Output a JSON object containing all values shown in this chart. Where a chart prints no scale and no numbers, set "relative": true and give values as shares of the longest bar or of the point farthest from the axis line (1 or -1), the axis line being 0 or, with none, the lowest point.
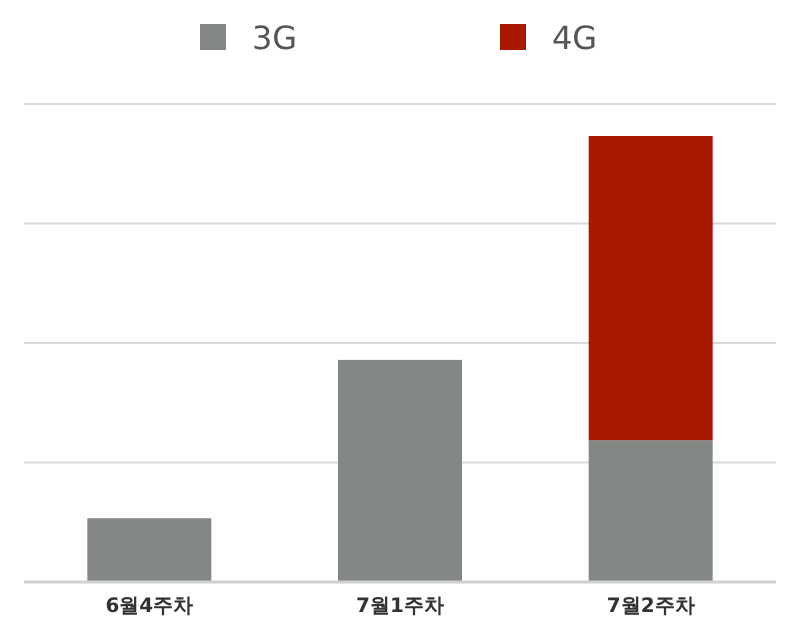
{
  "chart_data": {
    "type": "bar",
    "stacked": true,
    "relative": true,
    "grid": "y",
    "legend": "top",
    "categories": [
      "6월4주차",
      "7월1주차",
      "7월2주차"
    ],
    "series": [
      {
        "name": "3G",
        "color": "#838885",
        "values": [
          0.143,
          0.498,
          0.318
        ]
      },
      {
        "name": "4G",
        "color": "#ab1800",
        "values": [
          0,
          0,
          0.682
        ]
      }
    ]
  }
}
